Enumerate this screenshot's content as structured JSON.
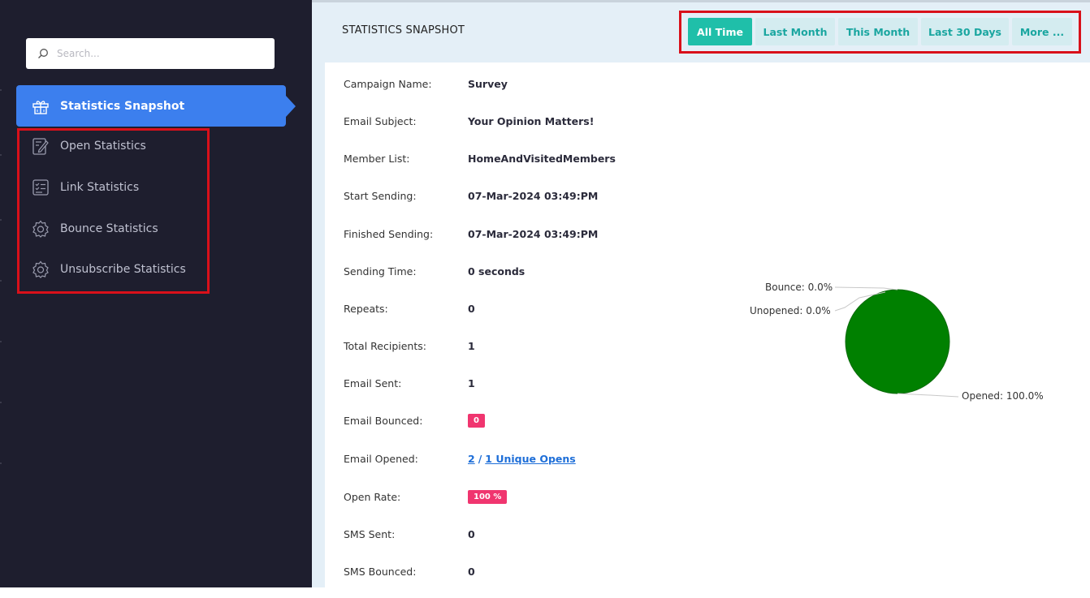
{
  "sidebar": {
    "search_placeholder": "Search...",
    "active_item": {
      "label": "Statistics Snapshot",
      "icon": "gift-icon"
    },
    "items": [
      {
        "label": "Open Statistics",
        "icon": "edit-note-icon"
      },
      {
        "label": "Link Statistics",
        "icon": "checklist-icon"
      },
      {
        "label": "Bounce Statistics",
        "icon": "gear-icon"
      },
      {
        "label": "Unsubscribe Statistics",
        "icon": "gear-icon"
      }
    ]
  },
  "header": {
    "title": "STATISTICS SNAPSHOT",
    "filters": [
      "All Time",
      "Last Month",
      "This Month",
      "Last 30 Days",
      "More ..."
    ],
    "active_filter": "All Time"
  },
  "details": [
    {
      "label": "Campaign Name:",
      "value": "Survey"
    },
    {
      "label": "Email Subject:",
      "value": "Your Opinion Matters!"
    },
    {
      "label": "Member List:",
      "value": "HomeAndVisitedMembers"
    },
    {
      "label": "Start Sending:",
      "value": "07-Mar-2024 03:49:PM"
    },
    {
      "label": "Finished Sending:",
      "value": "07-Mar-2024 03:49:PM"
    },
    {
      "label": "Sending Time:",
      "value": "0 seconds"
    },
    {
      "label": "Repeats:",
      "value": "0"
    },
    {
      "label": "Total Recipients:",
      "value": "1"
    },
    {
      "label": "Email Sent:",
      "value": "1"
    },
    {
      "label": "Email Bounced:",
      "value": "0"
    },
    {
      "label": "Email Opened:",
      "opens": "2",
      "separator": "/",
      "unique_opens": "1 Unique Opens"
    },
    {
      "label": "Open Rate:",
      "value": "100 %"
    },
    {
      "label": "SMS Sent:",
      "value": "0"
    },
    {
      "label": "SMS Bounced:",
      "value": "0"
    }
  ],
  "chart_data": {
    "type": "pie",
    "slices": [
      {
        "label": "Bounce: 0.0%",
        "value": 0.0
      },
      {
        "label": "Unopened: 0.0%",
        "value": 0.0
      },
      {
        "label": "Opened: 100.0%",
        "value": 100.0
      }
    ],
    "colors": {
      "Opened": "#008000"
    }
  },
  "colors": {
    "sidebar_bg": "#1e1e2e",
    "active_nav": "#3c7fee",
    "filter_active": "#1fbfa9",
    "badge": "#f0356f",
    "highlight": "#d9101a"
  }
}
